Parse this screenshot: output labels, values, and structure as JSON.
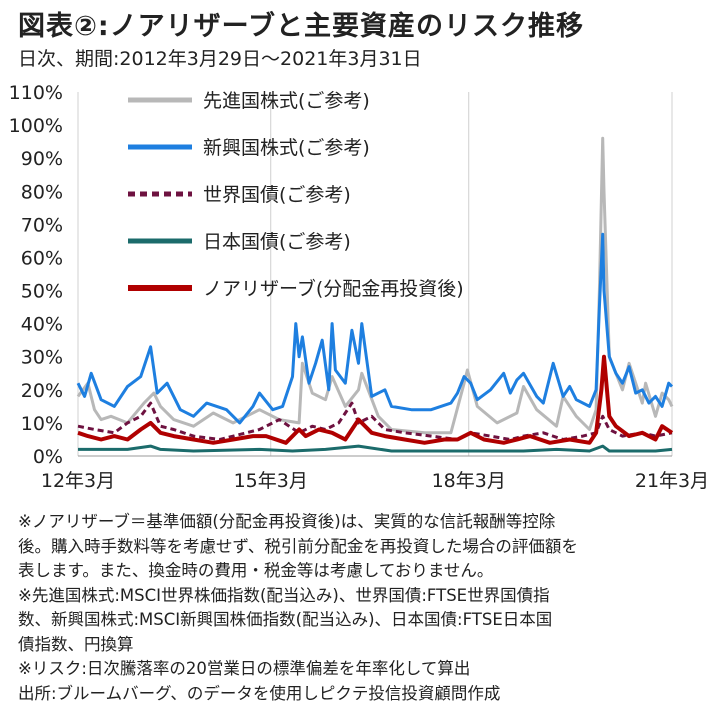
{
  "title": "図表②:ノアリザーブと主要資産のリスク推移",
  "subtitle": "日次、期間:2012年3月29日～2021年3月31日",
  "chart_data": {
    "type": "line",
    "ylabel": "",
    "xlabel": "",
    "ylim": [
      0,
      110
    ],
    "y_ticks": [
      "0%",
      "10%",
      "20%",
      "30%",
      "40%",
      "50%",
      "60%",
      "70%",
      "80%",
      "90%",
      "100%",
      "110%"
    ],
    "x_ticks": [
      "12年3月",
      "15年3月",
      "18年3月",
      "21年3月"
    ],
    "x_tick_positions": [
      2012.25,
      2015.17,
      2018.17,
      2021.25
    ],
    "xlim": [
      2012.25,
      2021.25
    ],
    "grid": "vertical",
    "legend_placement": "top-left",
    "series": [
      {
        "name": "先進国株式(ご参考)",
        "color": "#b8b8b8",
        "style": "solid",
        "x": [
          2012.25,
          2012.4,
          2012.5,
          2012.6,
          2012.75,
          2013.0,
          2013.25,
          2013.4,
          2013.5,
          2013.7,
          2014.0,
          2014.3,
          2014.6,
          2014.8,
          2015.0,
          2015.3,
          2015.6,
          2015.65,
          2015.8,
          2016.0,
          2016.1,
          2016.3,
          2016.5,
          2016.55,
          2016.8,
          2017.0,
          2017.5,
          2017.9,
          2018.1,
          2018.15,
          2018.3,
          2018.6,
          2018.9,
          2019.0,
          2019.2,
          2019.5,
          2019.6,
          2019.8,
          2020.0,
          2020.1,
          2020.15,
          2020.2,
          2020.22,
          2020.3,
          2020.4,
          2020.5,
          2020.6,
          2020.8,
          2020.85,
          2021.0,
          2021.1,
          2021.2,
          2021.25
        ],
        "values": [
          18,
          22,
          14,
          11,
          12,
          10,
          16,
          19,
          15,
          11,
          9,
          13,
          10,
          12,
          14,
          11,
          10,
          28,
          19,
          17,
          24,
          15,
          20,
          25,
          12,
          8,
          7,
          7,
          22,
          26,
          15,
          10,
          13,
          21,
          14,
          9,
          18,
          12,
          8,
          14,
          50,
          96,
          80,
          30,
          25,
          20,
          28,
          16,
          22,
          12,
          19,
          17,
          15
        ]
      },
      {
        "name": "新興国株式(ご参考)",
        "color": "#1e7fe0",
        "style": "solid",
        "x": [
          2012.25,
          2012.35,
          2012.45,
          2012.6,
          2012.8,
          2013.0,
          2013.2,
          2013.35,
          2013.45,
          2013.6,
          2013.8,
          2014.0,
          2014.2,
          2014.5,
          2014.7,
          2014.9,
          2015.0,
          2015.2,
          2015.35,
          2015.5,
          2015.55,
          2015.6,
          2015.65,
          2015.75,
          2015.85,
          2015.95,
          2016.05,
          2016.1,
          2016.15,
          2016.3,
          2016.4,
          2016.5,
          2016.55,
          2016.7,
          2016.9,
          2017.0,
          2017.3,
          2017.6,
          2017.9,
          2018.0,
          2018.1,
          2018.2,
          2018.3,
          2018.5,
          2018.7,
          2018.8,
          2018.9,
          2019.0,
          2019.2,
          2019.3,
          2019.45,
          2019.6,
          2019.7,
          2019.8,
          2020.0,
          2020.1,
          2020.15,
          2020.2,
          2020.22,
          2020.3,
          2020.4,
          2020.5,
          2020.6,
          2020.7,
          2020.8,
          2020.9,
          2021.0,
          2021.1,
          2021.2,
          2021.25
        ],
        "values": [
          22,
          18,
          25,
          17,
          15,
          21,
          24,
          33,
          19,
          22,
          14,
          12,
          16,
          14,
          10,
          15,
          19,
          14,
          15,
          24,
          40,
          30,
          36,
          22,
          28,
          35,
          20,
          40,
          26,
          22,
          38,
          28,
          40,
          18,
          20,
          15,
          14,
          14,
          16,
          19,
          24,
          22,
          17,
          20,
          25,
          19,
          23,
          25,
          18,
          16,
          28,
          18,
          21,
          17,
          15,
          20,
          45,
          67,
          50,
          30,
          25,
          22,
          27,
          19,
          20,
          16,
          18,
          15,
          22,
          21
        ]
      },
      {
        "name": "世界国債(ご参考)",
        "color": "#6e1240",
        "style": "dashed",
        "x": [
          2012.25,
          2012.5,
          2012.8,
          2013.0,
          2013.2,
          2013.35,
          2013.5,
          2013.7,
          2014.0,
          2014.4,
          2014.8,
          2015.0,
          2015.3,
          2015.6,
          2015.8,
          2016.0,
          2016.2,
          2016.4,
          2016.5,
          2016.7,
          2016.9,
          2017.2,
          2017.6,
          2018.0,
          2018.2,
          2018.5,
          2018.8,
          2019.0,
          2019.3,
          2019.6,
          2019.9,
          2020.1,
          2020.2,
          2020.3,
          2020.5,
          2020.8,
          2021.0,
          2021.25
        ],
        "values": [
          9,
          8,
          7,
          10,
          12,
          16,
          9,
          8,
          6,
          5,
          7,
          8,
          11,
          7,
          9,
          8,
          10,
          16,
          10,
          12,
          8,
          7,
          6,
          5,
          7,
          6,
          5,
          6,
          7,
          5,
          6,
          7,
          12,
          8,
          6,
          7,
          6,
          7
        ]
      },
      {
        "name": "日本国債(ご参考)",
        "color": "#1b6b6b",
        "style": "solid",
        "x": [
          2012.25,
          2013.0,
          2013.35,
          2013.5,
          2014.0,
          2015.0,
          2015.5,
          2016.0,
          2016.5,
          2017.0,
          2018.0,
          2019.0,
          2019.5,
          2020.0,
          2020.2,
          2020.3,
          2021.0,
          2021.25
        ],
        "values": [
          2,
          2,
          3,
          2,
          1.5,
          2,
          1.5,
          2,
          3,
          1.5,
          1.5,
          1.5,
          2,
          1.5,
          3,
          1.5,
          1.5,
          2
        ]
      },
      {
        "name": "ノアリザーブ(分配金再投資後)",
        "color": "#b00000",
        "style": "solid",
        "x": [
          2012.25,
          2012.4,
          2012.6,
          2012.8,
          2013.0,
          2013.2,
          2013.35,
          2013.5,
          2013.7,
          2014.0,
          2014.3,
          2014.6,
          2014.9,
          2015.1,
          2015.4,
          2015.6,
          2015.7,
          2015.9,
          2016.1,
          2016.3,
          2016.5,
          2016.7,
          2016.9,
          2017.2,
          2017.5,
          2017.8,
          2018.0,
          2018.2,
          2018.4,
          2018.7,
          2018.9,
          2019.1,
          2019.4,
          2019.7,
          2020.0,
          2020.1,
          2020.18,
          2020.22,
          2020.3,
          2020.4,
          2020.6,
          2020.8,
          2021.0,
          2021.1,
          2021.25
        ],
        "values": [
          7,
          6,
          5,
          6,
          5,
          8,
          10,
          7,
          6,
          5,
          4,
          5,
          6,
          6,
          4,
          8,
          6,
          8,
          7,
          5,
          11,
          7,
          6,
          5,
          4,
          5,
          5,
          7,
          5,
          4,
          5,
          6,
          4,
          5,
          4,
          7,
          20,
          30,
          12,
          9,
          6,
          7,
          5,
          9,
          7
        ]
      }
    ]
  },
  "notes": [
    "※ノアリザーブ＝基準価額(分配金再投資後)は、実質的な信託報酬等控除",
    "後。購入時手数料等を考慮せず、税引前分配金を再投資した場合の評価額を",
    "表します。また、換金時の費用・税金等は考慮しておりません。",
    "※先進国株式:MSCI世界株価指数(配当込み)、世界国債:FTSE世界国債指",
    "数、新興国株式:MSCI新興国株価指数(配当込み)、日本国債:FTSE日本国",
    "債指数、円換算",
    "※リスク:日次騰落率の20営業日の標準偏差を年率化して算出",
    "出所:ブルームバーグ、のデータを使用しピクテ投信投資顧問作成"
  ]
}
